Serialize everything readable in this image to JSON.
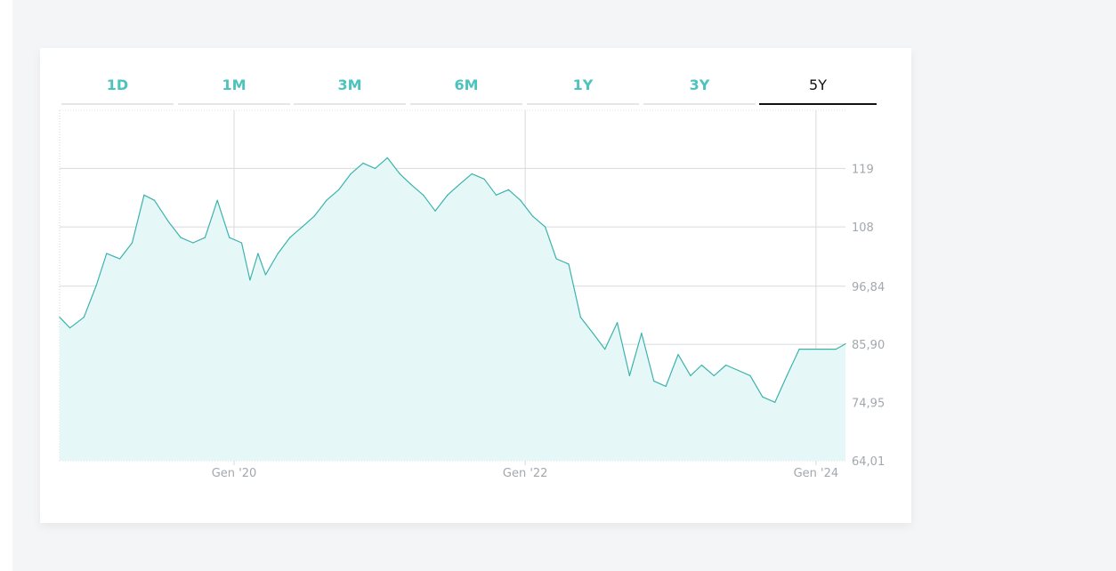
{
  "tabs": [
    {
      "label": "1D",
      "active": false
    },
    {
      "label": "1M",
      "active": false
    },
    {
      "label": "3M",
      "active": false
    },
    {
      "label": "6M",
      "active": false
    },
    {
      "label": "1Y",
      "active": false
    },
    {
      "label": "3Y",
      "active": false
    },
    {
      "label": "5Y",
      "active": true
    }
  ],
  "colors": {
    "accent": "#4cc3bd",
    "line": "#3bb3ad",
    "area_fill": "#e6f7f7",
    "grid": "#d8dadc",
    "background": "#f4f5f7"
  },
  "chart_data": {
    "type": "area",
    "title": "",
    "xlabel": "",
    "ylabel": "",
    "x_ticks": [
      {
        "label": "Gen '20",
        "date": "2020-01-01"
      },
      {
        "label": "Gen '22",
        "date": "2022-01-01"
      },
      {
        "label": "Gen '24",
        "date": "2024-01-01"
      }
    ],
    "y_ticks": [
      {
        "label": "119",
        "value": 119
      },
      {
        "label": "108",
        "value": 108
      },
      {
        "label": "96,84",
        "value": 96.84
      },
      {
        "label": "85,90",
        "value": 85.9
      },
      {
        "label": "74,95",
        "value": 74.95
      },
      {
        "label": "64,01",
        "value": 64.01
      }
    ],
    "ylim": [
      64.01,
      129.94
    ],
    "xlim": [
      "2018-10-20",
      "2024-03-15"
    ],
    "grid": true,
    "y_axis_position": "right",
    "x": [
      "2018-10-20",
      "2018-11-15",
      "2018-12-20",
      "2019-01-20",
      "2019-02-15",
      "2019-03-20",
      "2019-04-20",
      "2019-05-20",
      "2019-06-15",
      "2019-07-20",
      "2019-08-20",
      "2019-09-20",
      "2019-10-20",
      "2019-11-20",
      "2019-12-20",
      "2020-01-20",
      "2020-02-10",
      "2020-03-01",
      "2020-03-20",
      "2020-04-20",
      "2020-05-20",
      "2020-06-20",
      "2020-07-20",
      "2020-08-20",
      "2020-09-20",
      "2020-10-20",
      "2020-11-20",
      "2020-12-20",
      "2021-01-20",
      "2021-02-20",
      "2021-03-20",
      "2021-04-20",
      "2021-05-20",
      "2021-06-20",
      "2021-07-20",
      "2021-08-20",
      "2021-09-20",
      "2021-10-20",
      "2021-11-20",
      "2021-12-20",
      "2022-01-20",
      "2022-02-20",
      "2022-03-20",
      "2022-04-20",
      "2022-05-20",
      "2022-06-20",
      "2022-07-20",
      "2022-08-20",
      "2022-09-20",
      "2022-10-20",
      "2022-11-20",
      "2022-12-20",
      "2023-01-20",
      "2023-02-20",
      "2023-03-20",
      "2023-04-20",
      "2023-05-20",
      "2023-06-20",
      "2023-07-20",
      "2023-08-20",
      "2023-09-20",
      "2023-10-20",
      "2023-11-20",
      "2023-12-20",
      "2024-01-20",
      "2024-02-20",
      "2024-03-15"
    ],
    "series": [
      {
        "values": [
          91,
          89,
          91,
          97,
          103,
          102,
          105,
          114,
          113,
          109,
          106,
          105,
          106,
          113,
          106,
          105,
          98,
          103,
          99,
          103,
          106,
          108,
          110,
          113,
          115,
          118,
          120,
          119,
          121,
          118,
          116,
          114,
          111,
          114,
          116,
          118,
          117,
          114,
          115,
          113,
          110,
          108,
          102,
          101,
          91,
          88,
          85,
          90,
          80,
          88,
          79,
          78,
          84,
          80,
          82,
          80,
          82,
          81,
          80,
          76,
          75,
          80,
          85,
          85,
          85,
          85,
          86
        ]
      }
    ]
  }
}
